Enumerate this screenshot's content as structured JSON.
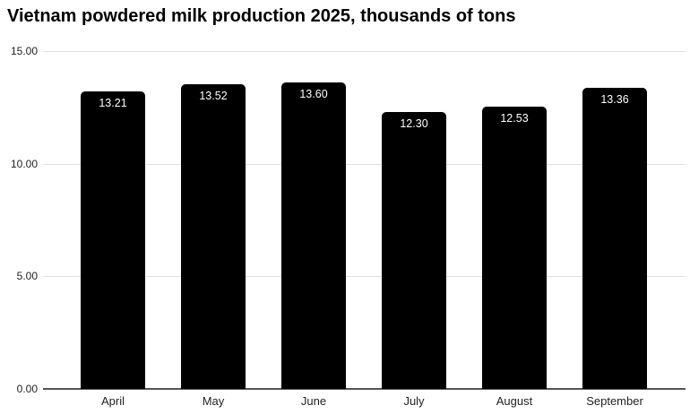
{
  "header": {
    "title": "Vietnam powdered milk production 2025, thousands of tons"
  },
  "chart_data": {
    "type": "bar",
    "title": "Vietnam powdered milk production 2025, thousands of tons",
    "categories": [
      "April",
      "May",
      "June",
      "July",
      "August",
      "September"
    ],
    "values": [
      13.21,
      13.52,
      13.6,
      12.3,
      12.53,
      13.36
    ],
    "value_labels": [
      "13.21",
      "13.52",
      "13.60",
      "12.30",
      "12.53",
      "13.36"
    ],
    "xlabel": "",
    "ylabel": "",
    "ylim": [
      0,
      15
    ],
    "yticks": [
      15,
      10,
      5,
      0
    ],
    "ytick_labels": [
      "15.00",
      "10.00",
      "5.00",
      "0.00"
    ],
    "grid": true,
    "legend": false,
    "colors": {
      "bar": "#000000",
      "value_label": "#ffffff",
      "gridline": "#e0e0e0",
      "baseline": "#555555",
      "tick_text": "#222222",
      "title_text": "#000000",
      "background": "#ffffff"
    }
  }
}
